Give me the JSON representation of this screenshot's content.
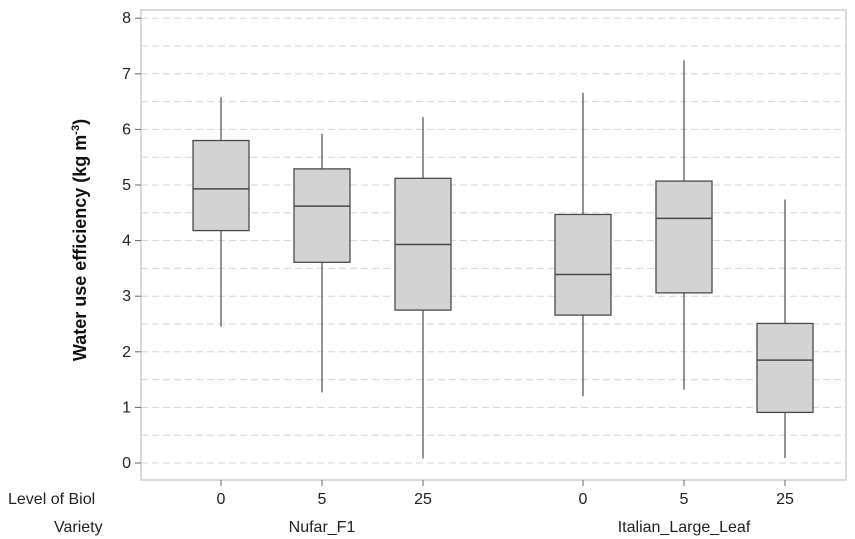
{
  "chart_data": {
    "type": "box",
    "ylabel": {
      "main": "Water use efficiency (kg m",
      "superscript": "-3",
      "close": ")"
    },
    "ylim": [
      -0.2,
      8.1
    ],
    "yticks": [
      "0",
      "1",
      "2",
      "3",
      "4",
      "5",
      "6",
      "7",
      "8"
    ],
    "grid": true,
    "row_labels": {
      "level": "Level of Biol",
      "variety": "Variety"
    },
    "groups": [
      {
        "variety": "Nufar_F1",
        "levels": [
          "0",
          "5",
          "25"
        ]
      },
      {
        "variety": "Italian_Large_Leaf",
        "levels": [
          "0",
          "5",
          "25"
        ]
      }
    ],
    "boxes": [
      {
        "variety": "Nufar_F1",
        "level": "0",
        "min": 2.45,
        "q1": 4.18,
        "median": 4.93,
        "q3": 5.8,
        "max": 6.58
      },
      {
        "variety": "Nufar_F1",
        "level": "5",
        "min": 1.27,
        "q1": 3.61,
        "median": 4.62,
        "q3": 5.29,
        "max": 5.92
      },
      {
        "variety": "Nufar_F1",
        "level": "25",
        "min": 0.08,
        "q1": 2.75,
        "median": 3.93,
        "q3": 5.12,
        "max": 6.22
      },
      {
        "variety": "Italian_Large_Leaf",
        "level": "0",
        "min": 1.2,
        "q1": 2.66,
        "median": 3.39,
        "q3": 4.47,
        "max": 6.66
      },
      {
        "variety": "Italian_Large_Leaf",
        "level": "5",
        "min": 1.32,
        "q1": 3.06,
        "median": 4.4,
        "q3": 5.07,
        "max": 7.24
      },
      {
        "variety": "Italian_Large_Leaf",
        "level": "25",
        "min": 0.09,
        "q1": 0.91,
        "median": 1.85,
        "q3": 2.51,
        "max": 4.74
      }
    ],
    "colors": {
      "box_fill": "#d3d3d3",
      "box_stroke": "#4a4a4a",
      "whisker": "#5a5a5a",
      "grid": "#d6d6d6",
      "frame": "#b5b5b5"
    }
  }
}
